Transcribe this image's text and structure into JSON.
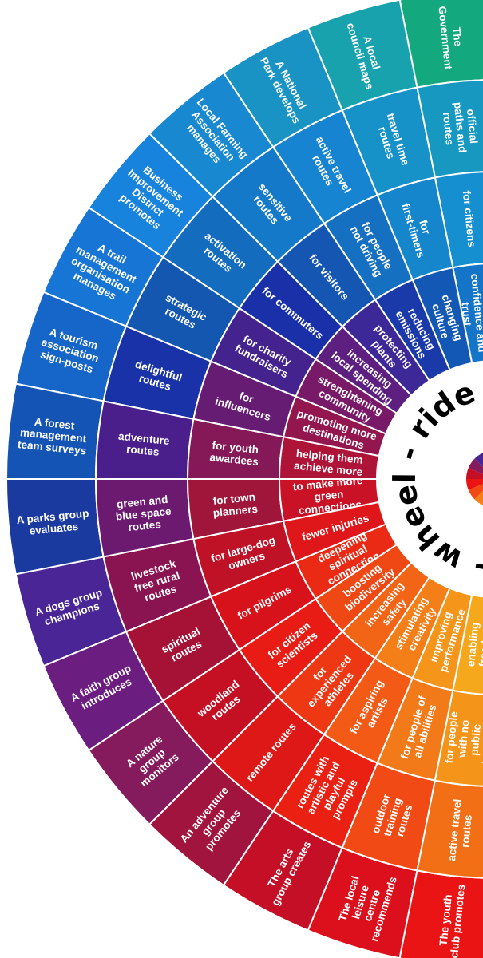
{
  "hub": {
    "text": "walk - wheel - ride - walk - wheel - ride -",
    "visible": "- wheel - ride - wa"
  },
  "rings": {
    "actors": [
      {
        "text": "The Government",
        "color": "#14a87e"
      },
      {
        "text": "A local council maps",
        "color": "#17a2ad"
      },
      {
        "text": "A National Park develops",
        "color": "#1893c4"
      },
      {
        "text": "Local Farming Association manages",
        "color": "#1889d0"
      },
      {
        "text": "Business Improvement District promotes",
        "color": "#1783dc"
      },
      {
        "text": "A trail management organisation manages",
        "color": "#1775d6"
      },
      {
        "text": "A tourism association sign-posts",
        "color": "#1665c8"
      },
      {
        "text": "A forest management team surveys",
        "color": "#1454b4"
      },
      {
        "text": "A parks group evaluates",
        "color": "#1a3aa0"
      },
      {
        "text": "A dogs group champions",
        "color": "#4a2596"
      },
      {
        "text": "A faith group introduces",
        "color": "#6c1e80"
      },
      {
        "text": "A nature group monitors",
        "color": "#851a5c"
      },
      {
        "text": "An adventure group promotes",
        "color": "#a1143e"
      },
      {
        "text": "The arts group creates",
        "color": "#c40f26"
      },
      {
        "text": "The local leisure centre recommends",
        "color": "#db101c"
      },
      {
        "text": "The youth club promotes",
        "color": "#ea1414"
      }
    ],
    "routes": [
      {
        "text": "official paths and routes",
        "color": "#1698c0"
      },
      {
        "text": "travel time routes",
        "color": "#1792c8"
      },
      {
        "text": "active travel routes",
        "color": "#1684d0"
      },
      {
        "text": "sensitive routes",
        "color": "#1479c8"
      },
      {
        "text": "activation routes",
        "color": "#136cbe"
      },
      {
        "text": "strategic routes",
        "color": "#1457b0"
      },
      {
        "text": "delightful routes",
        "color": "#1a32a8"
      },
      {
        "text": "adventure routes",
        "color": "#4a1f8c"
      },
      {
        "text": "green and blue space routes",
        "color": "#6c1a70"
      },
      {
        "text": "livestock free rural routes",
        "color": "#8a1452"
      },
      {
        "text": "spiritual routes",
        "color": "#a61236"
      },
      {
        "text": "woodland routes",
        "color": "#c50f22"
      },
      {
        "text": "remote routes",
        "color": "#de1717"
      },
      {
        "text": "routes with artistic and playful prompts",
        "color": "#e92012"
      },
      {
        "text": "outdoor training routes",
        "color": "#f14a14"
      },
      {
        "text": "active travel routes",
        "color": "#f26f16"
      }
    ],
    "audiences": [
      {
        "text": "for citizens",
        "color": "#158fd0"
      },
      {
        "text": "for first-timers",
        "color": "#1585cc"
      },
      {
        "text": "for people not driving",
        "color": "#1670c2"
      },
      {
        "text": "for visitors",
        "color": "#1456b2"
      },
      {
        "text": "for commuters",
        "color": "#1a30a8"
      },
      {
        "text": "for charity fundraisers",
        "color": "#44238e"
      },
      {
        "text": "for influencers",
        "color": "#671c74"
      },
      {
        "text": "for youth awardees",
        "color": "#851856"
      },
      {
        "text": "for town planners",
        "color": "#a0163a"
      },
      {
        "text": "for large-dog owners",
        "color": "#bf1226"
      },
      {
        "text": "for pilgrims",
        "color": "#d8121a"
      },
      {
        "text": "for citizen scientists",
        "color": "#e81c14"
      },
      {
        "text": "for experienced athletes",
        "color": "#ee3814"
      },
      {
        "text": "for aspiring artists",
        "color": "#f25a16"
      },
      {
        "text": "for people of all abilities",
        "color": "#f37a18"
      },
      {
        "text": "for people with no public transport",
        "color": "#f4951a"
      }
    ],
    "outcomes": [
      {
        "text": "creating confidence and trust",
        "color": "#1374c8"
      },
      {
        "text": "changing culture",
        "color": "#1458b6"
      },
      {
        "text": "reducing emissions",
        "color": "#1b3aaa"
      },
      {
        "text": "protecting plants",
        "color": "#3c2896"
      },
      {
        "text": "increasing local spending",
        "color": "#5e2080"
      },
      {
        "text": "strenghtening community",
        "color": "#781a68"
      },
      {
        "text": "promoting more destinations",
        "color": "#93174e"
      },
      {
        "text": "helping them achieve more",
        "color": "#ad1438"
      },
      {
        "text": "to make more green connections",
        "color": "#c91226"
      },
      {
        "text": "fewer injuries",
        "color": "#df161a"
      },
      {
        "text": "deepening spiritual connection",
        "color": "#ea2a14"
      },
      {
        "text": "boosting biodiversity",
        "color": "#f04814"
      },
      {
        "text": "increasing safety",
        "color": "#f26416"
      },
      {
        "text": "stimulating creativity",
        "color": "#f47e18"
      },
      {
        "text": "improving performance",
        "color": "#f5951a"
      },
      {
        "text": "enabling freedom",
        "color": "#f6a81c"
      }
    ]
  }
}
